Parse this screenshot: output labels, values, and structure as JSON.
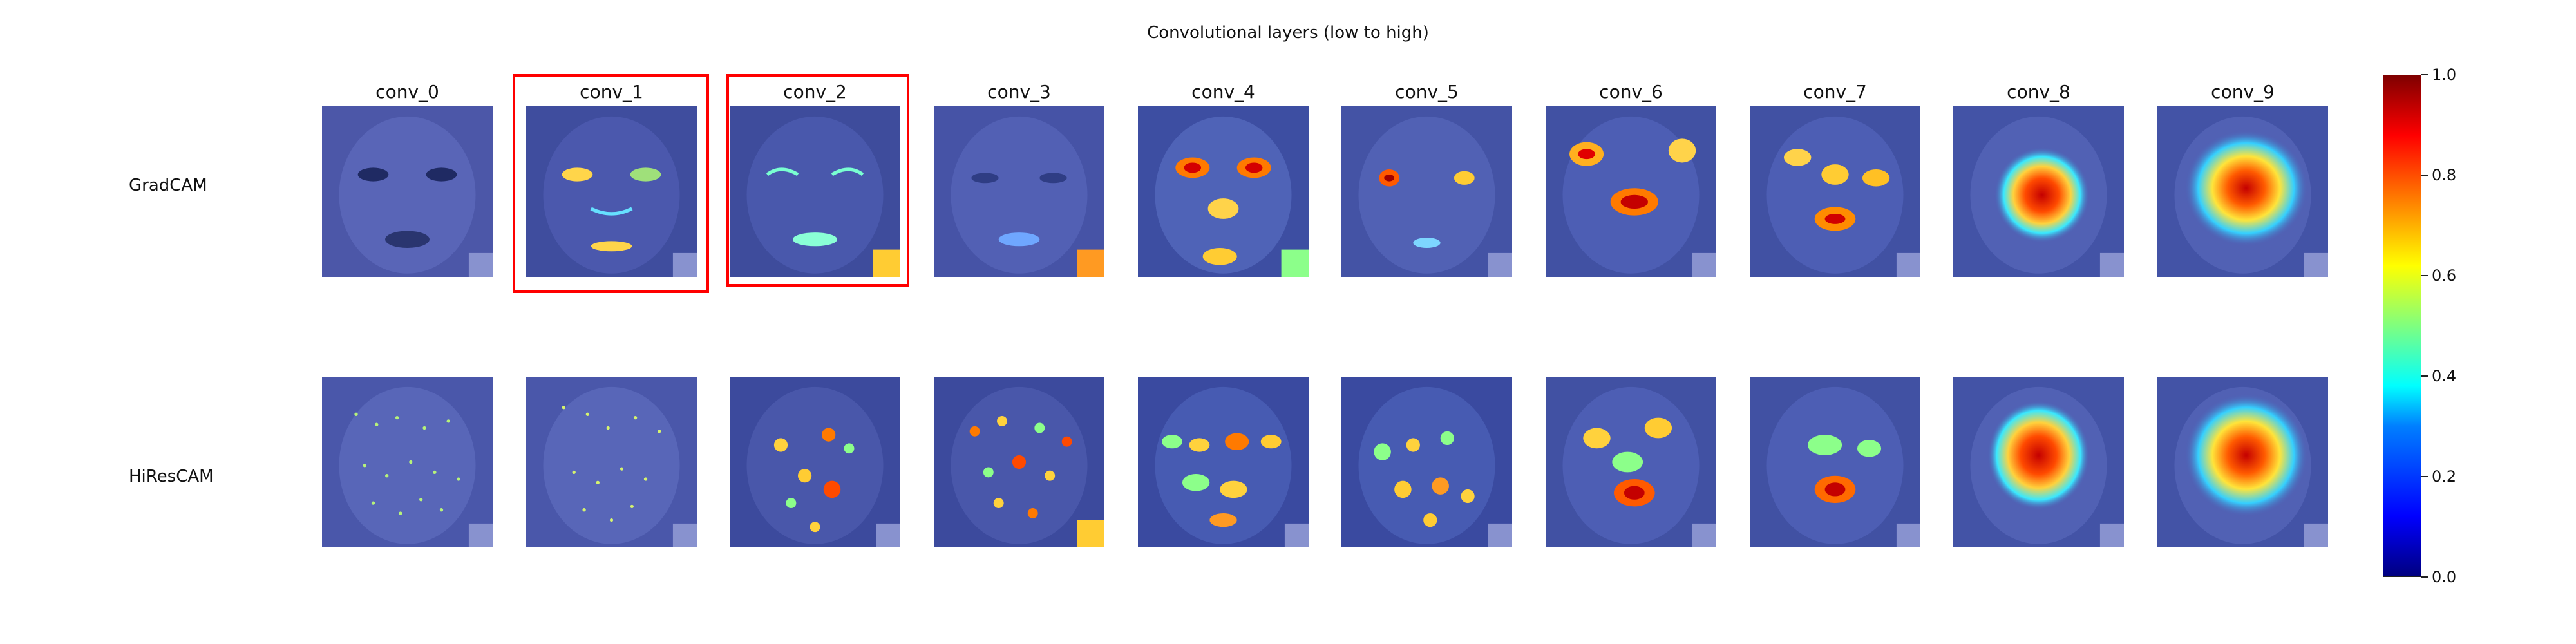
{
  "figure": {
    "title": "Convolutional layers (low to high)"
  },
  "rows": [
    {
      "label": "GradCAM"
    },
    {
      "label": "HiResCAM"
    }
  ],
  "columns": [
    "conv_0",
    "conv_1",
    "conv_2",
    "conv_3",
    "conv_4",
    "conv_5",
    "conv_6",
    "conv_7",
    "conv_8",
    "conv_9"
  ],
  "highlighted_columns": [
    "conv_1",
    "conv_2"
  ],
  "colorbar": {
    "ticks": [
      "0.0",
      "0.2",
      "0.4",
      "0.6",
      "0.8",
      "1.0"
    ]
  },
  "colors": {
    "highlight": "#ff0000"
  }
}
